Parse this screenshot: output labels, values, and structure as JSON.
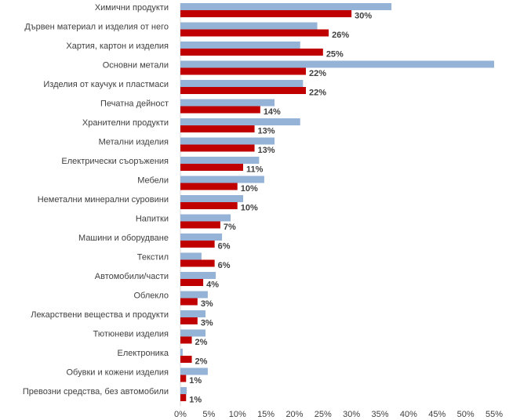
{
  "chart_data": {
    "type": "hbar",
    "categories": [
      "Химични продукти",
      "Дървен  материал и изделия от него",
      "Хартия, картон и изделия",
      "Основни метали",
      "Изделия  от каучук и пластмаси",
      "Печатна дейност",
      "Хранителни продукти",
      "Метални изделия",
      "Електрически  съоръжения",
      "Мебели",
      "Неметални  минерални суровини",
      "Напитки",
      "Машини и оборудване",
      "Текстил",
      "Автомобили/части",
      "Облекло",
      "Лекарствени  вещества и продукти",
      "Тютюневи  изделия",
      "Електроника",
      "Обувки и кожени изделия",
      "Превозни средства, без автомобили"
    ],
    "series": [
      {
        "color": "#95b3d7",
        "values": [
          37,
          24,
          21,
          55,
          21.5,
          16.5,
          21,
          16.5,
          13.8,
          14.7,
          11,
          8.8,
          7.3,
          3.7,
          6.2,
          4.8,
          4.4,
          4.4,
          0.4,
          4.8,
          1.1
        ]
      },
      {
        "color": "#c00000",
        "values": [
          30,
          26,
          25,
          22,
          22,
          14,
          13,
          13,
          11,
          10,
          10,
          7,
          6,
          6,
          4,
          3,
          3,
          2,
          2,
          1,
          1
        ],
        "value_labels": [
          "30%",
          "26%",
          "25%",
          "22%",
          "22%",
          "14%",
          "13%",
          "13%",
          "11%",
          "10%",
          "10%",
          "7%",
          "6%",
          "6%",
          "4%",
          "3%",
          "3%",
          "2%",
          "2%",
          "1%",
          "1%"
        ]
      }
    ],
    "xlim": [
      0,
      55
    ],
    "xticks": [
      {
        "value": 0,
        "label": "0%"
      },
      {
        "value": 5,
        "label": "5%"
      },
      {
        "value": 10,
        "label": "10%"
      },
      {
        "value": 15,
        "label": "15%"
      },
      {
        "value": 20,
        "label": "20%"
      },
      {
        "value": 25,
        "label": "25%"
      },
      {
        "value": 30,
        "label": "30%"
      },
      {
        "value": 35,
        "label": "35%"
      },
      {
        "value": 40,
        "label": "40%"
      },
      {
        "value": 45,
        "label": "45%"
      },
      {
        "value": 50,
        "label": "50%"
      },
      {
        "value": 55,
        "label": "55%"
      }
    ]
  }
}
